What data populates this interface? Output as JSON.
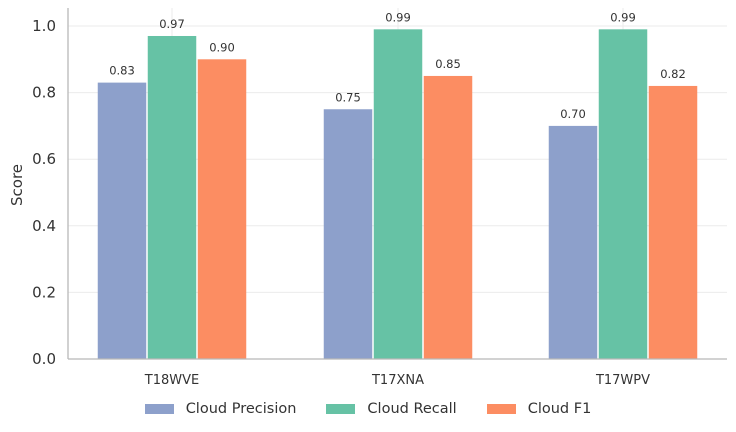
{
  "chart_data": {
    "type": "bar",
    "categories": [
      "T18WVE",
      "T17XNA",
      "T17WPV"
    ],
    "series": [
      {
        "name": "Cloud Precision",
        "color": "#8da0cb",
        "values": [
          0.83,
          0.75,
          0.7
        ],
        "labels": [
          "0.83",
          "0.75",
          "0.70"
        ]
      },
      {
        "name": "Cloud Recall",
        "color": "#66c2a5",
        "values": [
          0.97,
          0.99,
          0.99
        ],
        "labels": [
          "0.97",
          "0.99",
          "0.99"
        ]
      },
      {
        "name": "Cloud F1",
        "color": "#fc8d62",
        "values": [
          0.9,
          0.85,
          0.82
        ],
        "labels": [
          "0.90",
          "0.85",
          "0.82"
        ]
      }
    ],
    "xlabel": "",
    "ylabel": "Score",
    "ylim": [
      0,
      1.05
    ],
    "yticks": [
      0.0,
      0.2,
      0.4,
      0.6,
      0.8,
      1.0
    ],
    "ytick_labels": [
      "0.0",
      "0.2",
      "0.4",
      "0.6",
      "0.8",
      "1.0"
    ],
    "grid": "horizontal",
    "legend_position": "bottom-center"
  }
}
